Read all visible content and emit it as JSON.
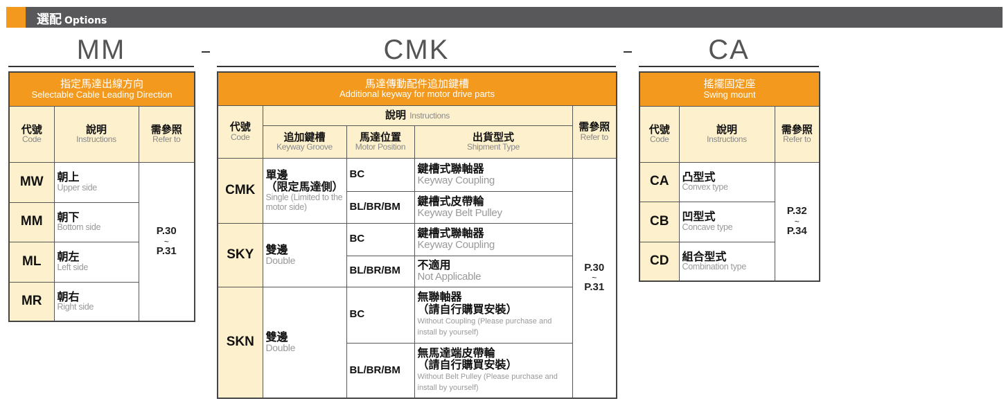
{
  "header": {
    "title_zh": "選配",
    "title_en": "Options"
  },
  "separator": "-",
  "mm": {
    "title": "MM",
    "head_zh": "指定馬達出線方向",
    "head_en": "Selectable Cable Leading Direction",
    "cols": {
      "code_zh": "代號",
      "code_en": "Code",
      "ins_zh": "說明",
      "ins_en": "Instructions",
      "ref_zh": "需參照",
      "ref_en": "Refer to"
    },
    "rows": [
      {
        "code": "MW",
        "zh": "朝上",
        "en": "Upper side"
      },
      {
        "code": "MM",
        "zh": "朝下",
        "en": "Bottom side"
      },
      {
        "code": "ML",
        "zh": "朝左",
        "en": "Left side"
      },
      {
        "code": "MR",
        "zh": "朝右",
        "en": "Right side"
      }
    ],
    "ref": {
      "from": "P.30",
      "tilde": "~",
      "to": "P.31"
    }
  },
  "cmk": {
    "title": "CMK",
    "head_zh": "馬達傳動配件追加鍵槽",
    "head_en": "Additional keyway for motor drive parts",
    "cols": {
      "code_zh": "代號",
      "code_en": "Code",
      "ins_zh": "說明",
      "ins_en": "Instructions",
      "kg_zh": "追加鍵槽",
      "kg_en": "Keyway Groove",
      "mp_zh": "馬達位置",
      "mp_en": "Motor Position",
      "st_zh": "出貨型式",
      "st_en": "Shipment Type",
      "ref_zh": "需參照",
      "ref_en": "Refer to"
    },
    "groups": [
      {
        "code": "CMK",
        "kg_zh1": "單邊",
        "kg_zh2": "（限定馬達側）",
        "kg_en": "Single (Limited to the motor side)",
        "rows": [
          {
            "mp": "BC",
            "zh": "鍵槽式聯軸器",
            "en": "Keyway Coupling"
          },
          {
            "mp": "BL/BR/BM",
            "zh": "鍵槽式皮帶輪",
            "en": "Keyway Belt Pulley"
          }
        ]
      },
      {
        "code": "SKY",
        "kg_zh1": "雙邊",
        "kg_en": "Double",
        "rows": [
          {
            "mp": "BC",
            "zh": "鍵槽式聯軸器",
            "en": "Keyway Coupling"
          },
          {
            "mp": "BL/BR/BM",
            "zh": "不適用",
            "en": "Not Applicable"
          }
        ]
      },
      {
        "code": "SKN",
        "kg_zh1": "雙邊",
        "kg_en": "Double",
        "rows": [
          {
            "mp": "BC",
            "zh": "無聯軸器",
            "zh2": "（請自行購買安裝）",
            "en": "Without Coupling (Please purchase and install by yourself)"
          },
          {
            "mp": "BL/BR/BM",
            "zh": "無馬達端皮帶輪",
            "zh2": "（請自行購買安裝）",
            "en": "Without Belt Pulley (Please purchase and install by yourself)"
          }
        ]
      }
    ],
    "ref": {
      "from": "P.30",
      "tilde": "~",
      "to": "P.31"
    }
  },
  "ca": {
    "title": "CA",
    "head_zh": "搖擺固定座",
    "head_en": "Swing mount",
    "cols": {
      "code_zh": "代號",
      "code_en": "Code",
      "ins_zh": "說明",
      "ins_en": "Instructions",
      "ref_zh": "需參照",
      "ref_en": "Refer to"
    },
    "rows": [
      {
        "code": "CA",
        "zh": "凸型式",
        "en": "Convex type"
      },
      {
        "code": "CB",
        "zh": "凹型式",
        "en": "Concave type"
      },
      {
        "code": "CD",
        "zh": "組合型式",
        "en": "Combination type"
      }
    ],
    "ref": {
      "from": "P.32",
      "tilde": "~",
      "to": "P.34"
    }
  },
  "colors": {
    "orange": "#f39a1e",
    "header_bg": "#fdf0cc",
    "bar": "#58585a"
  }
}
